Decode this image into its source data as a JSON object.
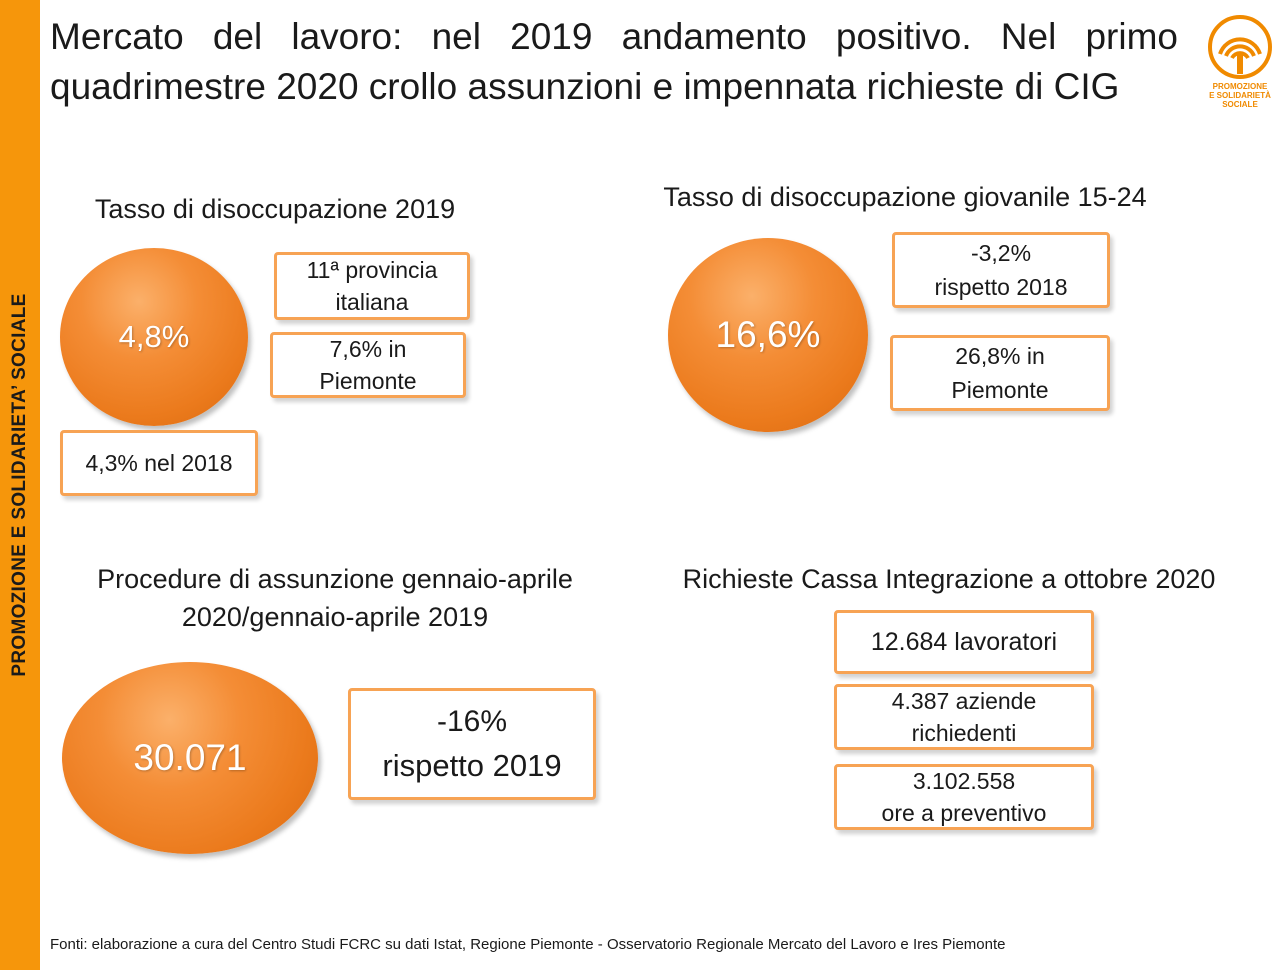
{
  "sidebar": {
    "label": "PROMOZIONE E SOLIDARIETA’ SOCIALE"
  },
  "title": {
    "line1": "Mercato del lavoro: nel 2019 andamento positivo. Nel primo",
    "line2": "quadrimestre 2020 crollo assunzioni e impennata richieste di CIG"
  },
  "logo": {
    "line1": "PROMOZIONE",
    "line2": "E SOLIDARIETÀ",
    "line3": "SOCIALE",
    "icon": "radio-waves-icon",
    "color": "#f08a00"
  },
  "colors": {
    "accent": "#f6960b",
    "circle": "#eb7a1c",
    "box_border": "#f7a354"
  },
  "panels": {
    "unemployment": {
      "heading": "Tasso di disoccupazione 2019",
      "value": "4,8%",
      "box1": {
        "line1": "11ª provincia",
        "line2": "italiana"
      },
      "box2": {
        "line1": "7,6% in",
        "line2": "Piemonte"
      },
      "box3": {
        "line1": "4,3% nel 2018"
      }
    },
    "youth": {
      "heading": "Tasso di disoccupazione giovanile 15-24",
      "value": "16,6%",
      "box1": {
        "line1": "-3,2%",
        "line2": "rispetto 2018"
      },
      "box2": {
        "line1": "26,8% in",
        "line2": "Piemonte"
      }
    },
    "hiring": {
      "heading_line1": "Procedure di assunzione gennaio-aprile",
      "heading_line2": "2020/gennaio-aprile 2019",
      "value": "30.071",
      "box1": {
        "line1": "-16%",
        "line2": "rispetto 2019"
      }
    },
    "cig": {
      "heading": "Richieste Cassa Integrazione a ottobre 2020",
      "box1": {
        "line1": "12.684 lavoratori"
      },
      "box2": {
        "line1": "4.387 aziende",
        "line2": "richiedenti"
      },
      "box3": {
        "line1": "3.102.558",
        "line2": "ore a preventivo"
      }
    }
  },
  "footer": {
    "text": "Fonti: elaborazione a cura del Centro Studi FCRC su dati Istat, Regione Piemonte - Osservatorio Regionale Mercato del Lavoro e Ires Piemonte"
  }
}
